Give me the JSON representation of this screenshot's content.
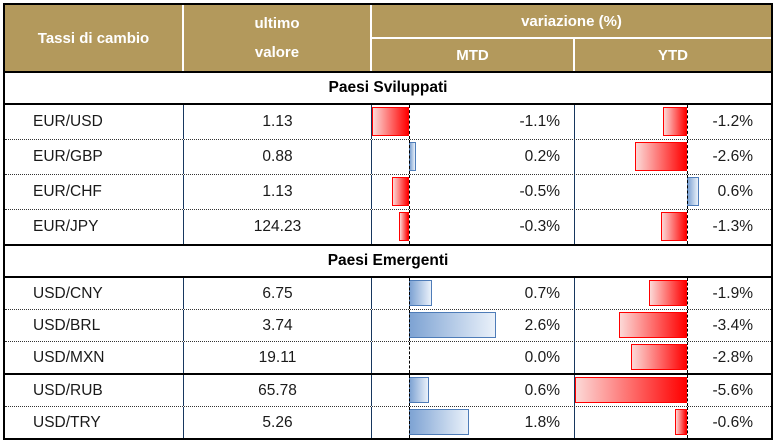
{
  "header": {
    "rate_col": "Tassi di cambio",
    "value_col_line1": "ultimo",
    "value_col_line2": "valore",
    "variation_col": "variazione (%)",
    "mtd_col": "MTD",
    "ytd_col": "YTD"
  },
  "colors": {
    "header_bg": "#B3995C",
    "header_text": "#FFFFFF",
    "grid_line": "#17375E",
    "outer_border": "#000000",
    "negative_bar_border": "#FF0000",
    "negative_bar_fill_light": "#FCD9D7",
    "positive_bar_border": "#4E7CB8",
    "positive_bar_fill_dark": "#7EA3D3",
    "positive_bar_fill_light": "#EAF1FA"
  },
  "chart_data": {
    "type": "table",
    "title": "Tassi di cambio",
    "value_column_label": "ultimo valore",
    "variation_column_label": "variazione (%)",
    "sub_columns": [
      "MTD",
      "YTD"
    ],
    "bar_axes": {
      "mtd": {
        "min": -1.1,
        "max": 2.6
      },
      "ytd": {
        "min": -5.6,
        "max": 0.6
      }
    },
    "sections": [
      {
        "title": "Paesi Sviluppati",
        "rows": [
          {
            "pair": "EUR/USD",
            "value": "1.13",
            "mtd": -1.1,
            "mtd_label": "-1.1%",
            "ytd": -1.2,
            "ytd_label": "-1.2%"
          },
          {
            "pair": "EUR/GBP",
            "value": "0.88",
            "mtd": 0.2,
            "mtd_label": "0.2%",
            "ytd": -2.6,
            "ytd_label": "-2.6%"
          },
          {
            "pair": "EUR/CHF",
            "value": "1.13",
            "mtd": -0.5,
            "mtd_label": "-0.5%",
            "ytd": 0.6,
            "ytd_label": "0.6%"
          },
          {
            "pair": "EUR/JPY",
            "value": "124.23",
            "mtd": -0.3,
            "mtd_label": "-0.3%",
            "ytd": -1.3,
            "ytd_label": "-1.3%"
          }
        ]
      },
      {
        "title": "Paesi Emergenti",
        "rows": [
          {
            "pair": "USD/CNY",
            "value": "6.75",
            "mtd": 0.7,
            "mtd_label": "0.7%",
            "ytd": -1.9,
            "ytd_label": "-1.9%"
          },
          {
            "pair": "USD/BRL",
            "value": "3.74",
            "mtd": 2.6,
            "mtd_label": "2.6%",
            "ytd": -3.4,
            "ytd_label": "-3.4%"
          },
          {
            "pair": "USD/MXN",
            "value": "19.11",
            "mtd": 0.0,
            "mtd_label": "0.0%",
            "ytd": -2.8,
            "ytd_label": "-2.8%",
            "divider_below": "solid"
          },
          {
            "pair": "USD/RUB",
            "value": "65.78",
            "mtd": 0.6,
            "mtd_label": "0.6%",
            "ytd": -5.6,
            "ytd_label": "-5.6%"
          },
          {
            "pair": "USD/TRY",
            "value": "5.26",
            "mtd": 1.8,
            "mtd_label": "1.8%",
            "ytd": -0.6,
            "ytd_label": "-0.6%"
          }
        ]
      }
    ]
  }
}
